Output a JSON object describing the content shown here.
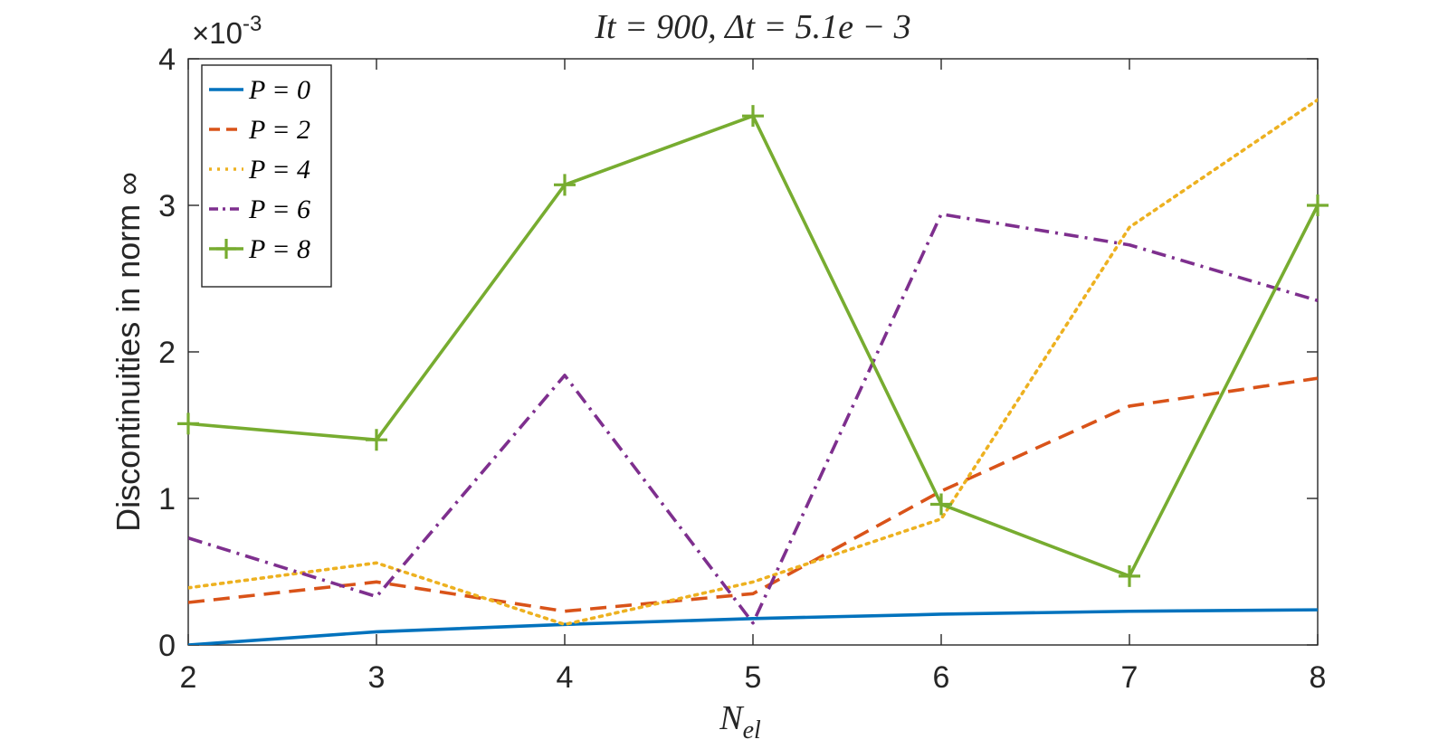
{
  "chart_data": {
    "type": "line",
    "title": "It = 900, Δt = 5.1e − 3",
    "xlabel": "N",
    "xlabel_subscript": "el",
    "ylabel": "Discontinuities in norm ∞",
    "y_exponent_label": "×10",
    "y_exponent_power": "-3",
    "x": [
      2,
      3,
      4,
      5,
      6,
      7,
      8
    ],
    "xlim": [
      2,
      8
    ],
    "ylim": [
      0,
      4
    ],
    "x_ticks": [
      "2",
      "3",
      "4",
      "5",
      "6",
      "7",
      "8"
    ],
    "y_ticks": [
      "0",
      "1",
      "2",
      "3",
      "4"
    ],
    "grid": false,
    "legend_position": "top-left",
    "series": [
      {
        "name": "P = 0",
        "color": "#0072BD",
        "style": "solid",
        "marker": "none",
        "values": [
          0.0,
          0.09,
          0.14,
          0.18,
          0.21,
          0.23,
          0.24
        ]
      },
      {
        "name": "P = 2",
        "color": "#D95319",
        "style": "dashed",
        "marker": "none",
        "values": [
          0.29,
          0.43,
          0.23,
          0.35,
          1.05,
          1.63,
          1.82
        ]
      },
      {
        "name": "P = 4",
        "color": "#EDB120",
        "style": "dotted",
        "marker": "none",
        "values": [
          0.39,
          0.56,
          0.14,
          0.43,
          0.86,
          2.85,
          3.72
        ]
      },
      {
        "name": "P = 6",
        "color": "#7E2F8E",
        "style": "dashdot",
        "marker": "none",
        "values": [
          0.73,
          0.33,
          1.84,
          0.15,
          2.94,
          2.73,
          2.35
        ]
      },
      {
        "name": "P = 8",
        "color": "#77AC30",
        "style": "solid",
        "marker": "plus",
        "values": [
          1.51,
          1.4,
          3.14,
          3.61,
          0.96,
          0.47,
          3.0
        ]
      }
    ]
  }
}
